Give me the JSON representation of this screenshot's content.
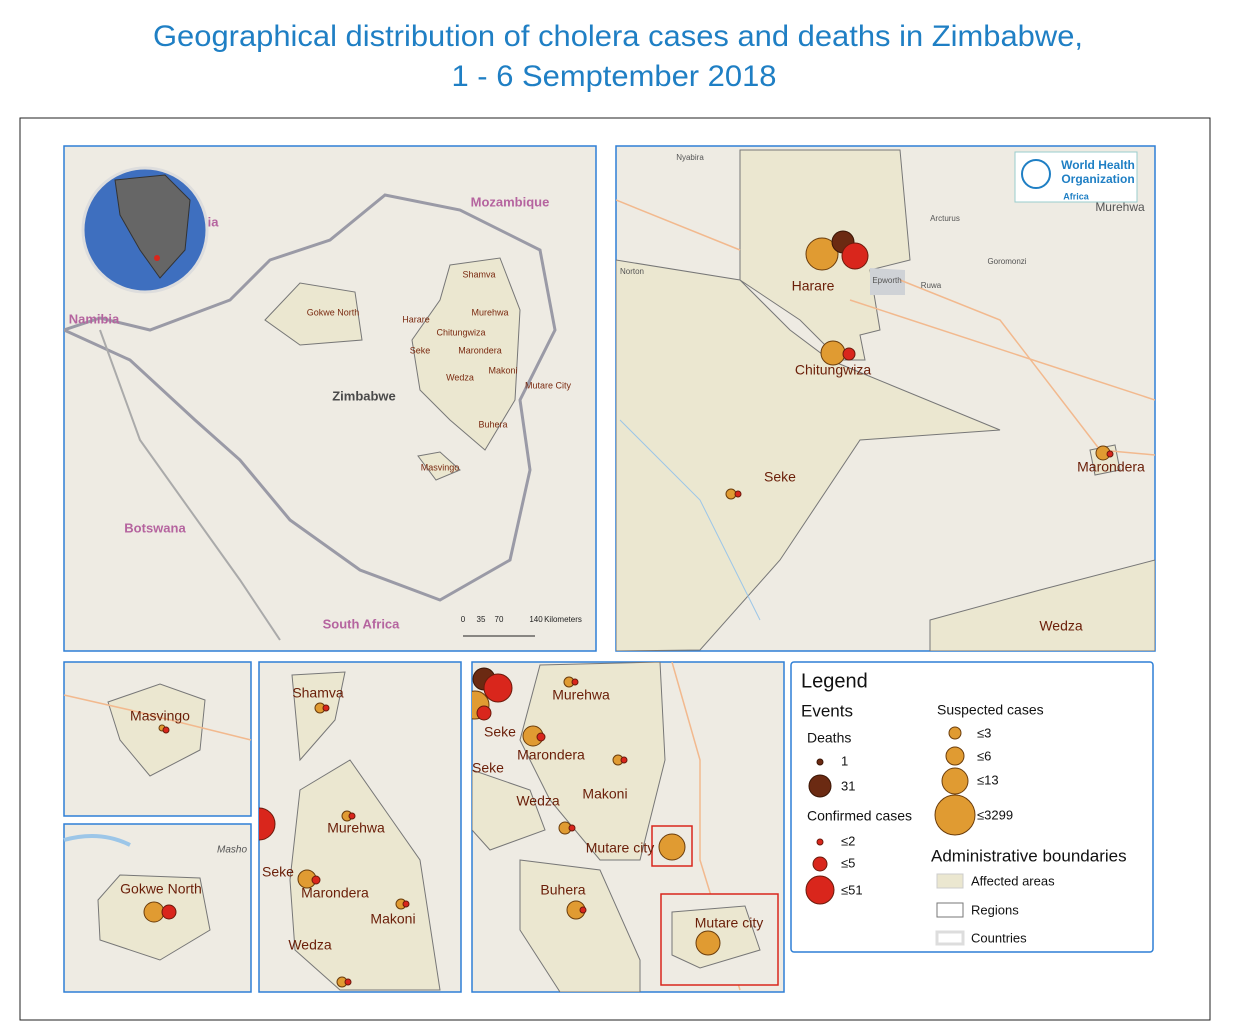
{
  "title": [
    "Geographical distribution of cholera cases and deaths in Zimbabwe,",
    "1 - 6 Semptember 2018"
  ],
  "overview_map": {
    "countries": [
      "Mozambique",
      "Namibia",
      "Zimbabwe",
      "Botswana",
      "South Africa",
      "ia"
    ],
    "districts": [
      "Gokwe North",
      "Shamva",
      "Harare",
      "Murehwa",
      "Chitungwiza",
      "Seke",
      "Marondera",
      "Wedza",
      "Makoni",
      "Mutare City",
      "Buhera",
      "Masvingo"
    ],
    "scale_bar": {
      "ticks": [
        "0",
        "35",
        "70",
        "140"
      ],
      "unit": "Kilometers"
    }
  },
  "harare_map": {
    "logo": [
      "World Health",
      "Organization",
      "Africa"
    ],
    "places": [
      "Nyabira",
      "Norton",
      "Arcturus",
      "Goromonzi",
      "Epworth",
      "Ruwa",
      "Murehwa"
    ],
    "districts": [
      "Harare",
      "Chitungwiza",
      "Seke",
      "Marondera",
      "Wedza"
    ]
  },
  "masvingo_map": {
    "districts": [
      "Masvingo"
    ]
  },
  "gokwe_map": {
    "districts": [
      "Gokwe North"
    ],
    "places": [
      "Masho"
    ]
  },
  "central_map": {
    "districts": [
      "Shamva",
      "Murehwa",
      "Seke",
      "Marondera",
      "Makoni",
      "Wedza"
    ]
  },
  "east_map": {
    "districts": [
      "Murehwa",
      "Seke",
      "Marondera",
      "Seke",
      "Wedza",
      "Makoni",
      "Mutare city",
      "Buhera"
    ],
    "inset_label": "Mutare city"
  },
  "legend": {
    "title": "Legend",
    "events": "Events",
    "deaths": {
      "title": "Deaths",
      "labels": [
        "1",
        "31"
      ]
    },
    "confirmed": {
      "title": "Confirmed cases",
      "labels": [
        "≤2",
        "≤5",
        "≤51"
      ]
    },
    "suspected": {
      "title": "Suspected cases",
      "labels": [
        "≤3",
        "≤6",
        "≤13",
        "≤3299"
      ]
    },
    "boundaries": {
      "title": "Administrative boundaries",
      "labels": [
        "Affected areas",
        "Regions",
        "Countries"
      ]
    }
  }
}
